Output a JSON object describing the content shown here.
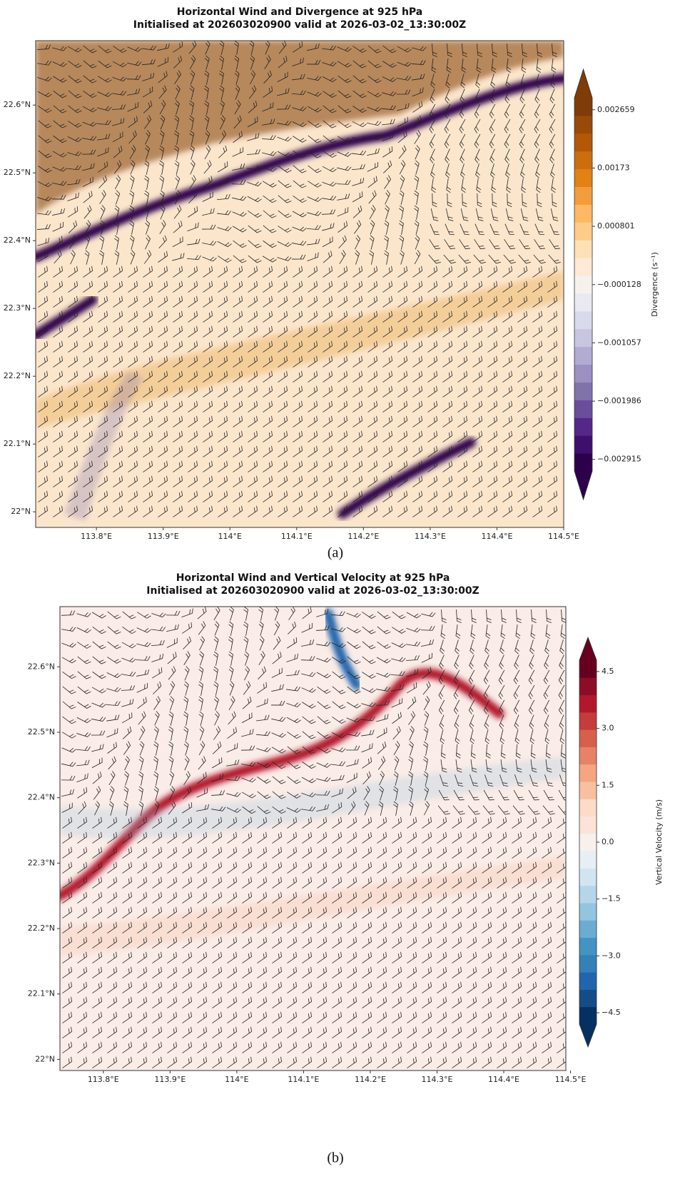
{
  "panels": [
    {
      "title": [
        "Horizontal Wind and Divergence at 925 hPa",
        "Initialised at 202603020900 valid at 2026-03-02_13:30:00Z"
      ],
      "xlim": [
        113.709,
        114.5
      ],
      "ylim": [
        21.977,
        22.695
      ],
      "xticks": [
        {
          "value": 113.8,
          "label": "113.8°E"
        },
        {
          "value": 113.9,
          "label": "113.9°E"
        },
        {
          "value": 114,
          "label": "114°E"
        },
        {
          "value": 114.1,
          "label": "114.1°E"
        },
        {
          "value": 114.2,
          "label": "114.2°E"
        },
        {
          "value": 114.3,
          "label": "114.3°E"
        },
        {
          "value": 114.4,
          "label": "114.4°E"
        },
        {
          "value": 114.5,
          "label": "114.5°E"
        }
      ],
      "yticks": [
        {
          "value": 22,
          "label": "22°N"
        },
        {
          "value": 22.1,
          "label": "22.1°N"
        },
        {
          "value": 22.2,
          "label": "22.2°N"
        },
        {
          "value": 22.3,
          "label": "22.3°N"
        },
        {
          "value": 22.4,
          "label": "22.4°N"
        },
        {
          "value": 22.5,
          "label": "22.5°N"
        },
        {
          "value": 22.6,
          "label": "22.6°N"
        }
      ],
      "colorbar": {
        "label": "Divergence (s⁻¹)",
        "lim": [
          -0.0031,
          0.00285
        ],
        "ticks": [
          {
            "value": -0.002915,
            "label": "−0.002915"
          },
          {
            "value": -0.001986,
            "label": "−0.001986"
          },
          {
            "value": -0.001057,
            "label": "−0.001057"
          },
          {
            "value": -0.000128,
            "label": "−0.000128"
          },
          0.000801,
          0.00173,
          0.002659
        ],
        "colors": [
          "#2d004b",
          "#3f0f6e",
          "#542788",
          "#6a4e9c",
          "#8073ac",
          "#9a90c1",
          "#b2abd2",
          "#c8c5e0",
          "#d8daeb",
          "#e8e9f1",
          "#f7f1ec",
          "#fde9d4",
          "#fee0b6",
          "#fdcb8a",
          "#fdb863",
          "#f29d3c",
          "#e08214",
          "#cb6f0e",
          "#b35806",
          "#9a4a07",
          "#7f3b08"
        ]
      },
      "panel_label": "(a)"
    },
    {
      "title": [
        "Horizontal Wind and Vertical Velocity at 925 hPa",
        "Initialised at 202603020900 valid at 2026-03-02_13:30:00Z"
      ],
      "xlim": [
        113.735,
        114.493
      ],
      "ylim": [
        21.983,
        22.692
      ],
      "xticks": [
        {
          "value": 113.8,
          "label": "113.8°E"
        },
        {
          "value": 113.9,
          "label": "113.9°E"
        },
        {
          "value": 114,
          "label": "114°E"
        },
        {
          "value": 114.1,
          "label": "114.1°E"
        },
        {
          "value": 114.2,
          "label": "114.2°E"
        },
        {
          "value": 114.3,
          "label": "114.3°E"
        },
        {
          "value": 114.4,
          "label": "114.4°E"
        },
        {
          "value": 114.5,
          "label": "114.5°E"
        }
      ],
      "yticks": [
        {
          "value": 22,
          "label": "22°N"
        },
        {
          "value": 22.1,
          "label": "22.1°N"
        },
        {
          "value": 22.2,
          "label": "22.2°N"
        },
        {
          "value": 22.3,
          "label": "22.3°N"
        },
        {
          "value": 22.4,
          "label": "22.4°N"
        },
        {
          "value": 22.5,
          "label": "22.5°N"
        },
        {
          "value": 22.6,
          "label": "22.6°N"
        }
      ],
      "colorbar": {
        "label": "Vertical Velocity (m/s)",
        "lim": [
          -4.8,
          4.8
        ],
        "ticks": [
          {
            "value": -4.5,
            "label": "−4.5"
          },
          {
            "value": -3,
            "label": "−3.0"
          },
          {
            "value": -1.5,
            "label": "−1.5"
          },
          {
            "value": 0,
            "label": "0.0"
          },
          1.5,
          {
            "value": 3,
            "label": "3.0"
          },
          4.5
        ],
        "colors": [
          "#053061",
          "#134c87",
          "#2166ac",
          "#3480b9",
          "#4393c3",
          "#6bacd1",
          "#92c5de",
          "#b4d6e8",
          "#d1e5f0",
          "#e6eff4",
          "#f7f0ec",
          "#fbe3d6",
          "#fddbc7",
          "#f8bfa1",
          "#f4a582",
          "#e58267",
          "#d6604d",
          "#c43c3c",
          "#b2182b",
          "#8c0d25",
          "#67001f"
        ]
      },
      "panel_label": "(b)"
    }
  ]
}
